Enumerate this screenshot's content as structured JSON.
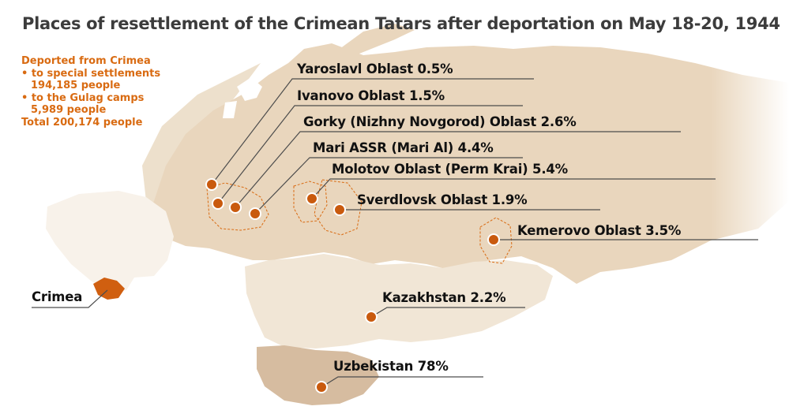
{
  "title": "Places of resettlement of the Crimean Tatars after deportation on May 18-20, 1944",
  "legend": {
    "heading": "Deported from Crimea",
    "special_settlements_label": "to special settlements",
    "special_settlements_value": "194,185 people",
    "gulag_label": "to the Gulag camps",
    "gulag_value": "5,989 people",
    "total": "Total 200,174 people"
  },
  "origin_label": "Crimea",
  "places": [
    {
      "name": "Yaroslavl Oblast 0.5%"
    },
    {
      "name": "Ivanovo Oblast 1.5%"
    },
    {
      "name": "Gorky (Nizhny Novgorod) Oblast 2.6%"
    },
    {
      "name": "Mari ASSR (Mari Al) 4.4%"
    },
    {
      "name": "Molotov Oblast (Perm Krai) 5.4%"
    },
    {
      "name": "Sverdlovsk Oblast 1.9%"
    },
    {
      "name": "Kemerovo Oblast 3.5%"
    },
    {
      "name": "Kazakhstan 2.2%"
    },
    {
      "name": "Uzbekistan 78%"
    }
  ],
  "colors": {
    "land_russia": "#e9d6bd",
    "land_kazakhstan": "#f1e6d6",
    "land_uzbekistan": "#d6bca0",
    "land_west": "#ede0cc",
    "ukraine": "#f8f2ea",
    "crimea": "#d05f10",
    "dot": "#c95a0e",
    "accent": "#d96b12",
    "leader": "#4d4d4d"
  }
}
